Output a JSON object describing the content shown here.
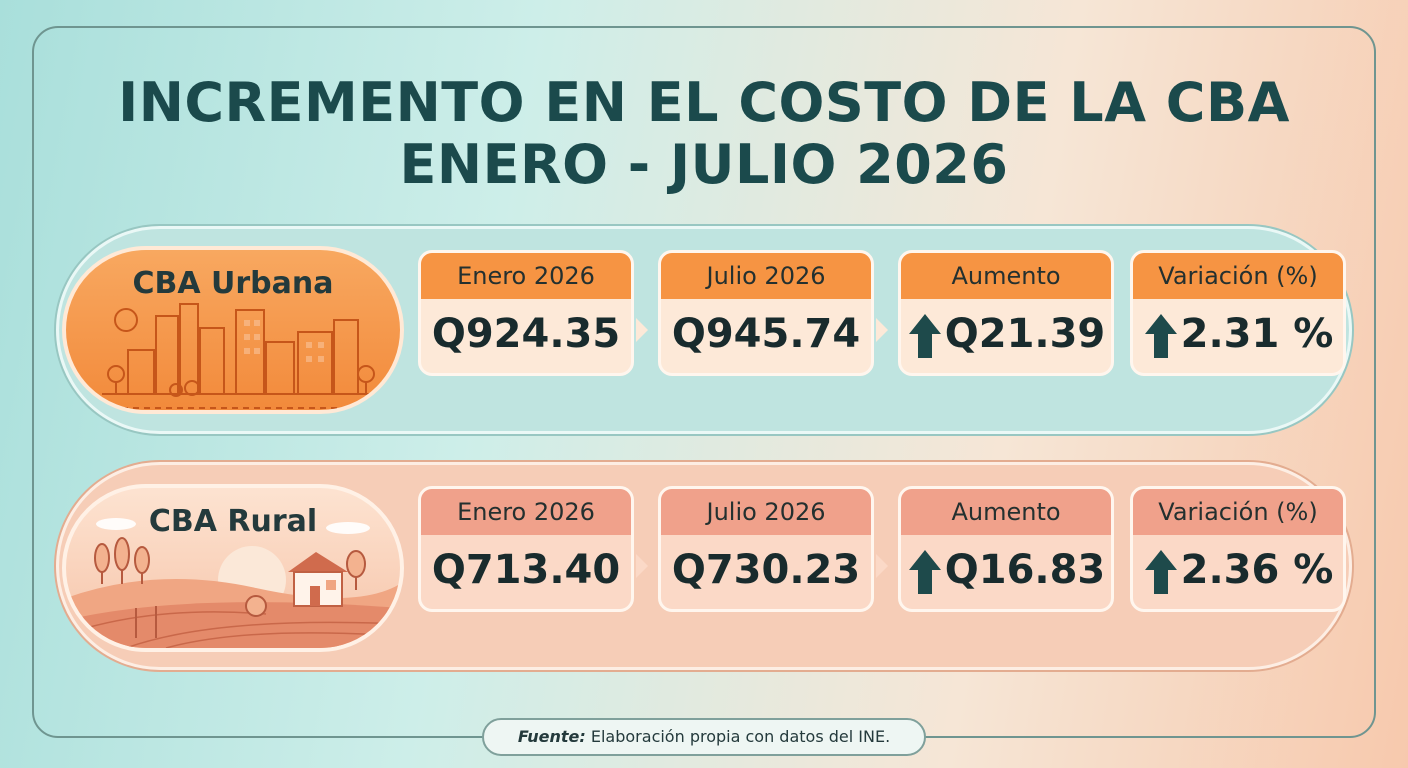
{
  "title": {
    "line1": "INCREMENTO EN EL COSTO DE LA CBA",
    "line2": "ENERO - JULIO 2026"
  },
  "rows": [
    {
      "label": "CBA Urbana",
      "cards": [
        {
          "header": "Enero 2026",
          "value": "Q924.35"
        },
        {
          "header": "Julio 2026",
          "value": "Q945.74"
        },
        {
          "header": "Aumento",
          "value": "Q21.39"
        },
        {
          "header": "Variación (%)",
          "value": "2.31 %"
        }
      ]
    },
    {
      "label": "CBA Rural",
      "cards": [
        {
          "header": "Enero 2026",
          "value": "Q713.40"
        },
        {
          "header": "Julio 2026",
          "value": "Q730.23"
        },
        {
          "header": "Aumento",
          "value": "Q16.83"
        },
        {
          "header": "Variación (%)",
          "value": "2.36 %"
        }
      ]
    }
  ],
  "source": {
    "label": "Fuente:",
    "text": "Elaboración propia con datos del INE."
  },
  "icons": {
    "arrow": "arrow-up-icon",
    "urban": "city-illustration",
    "rural": "farm-illustration"
  },
  "colors": {
    "title": "#1b4a4c",
    "urban_accent": "#f69443",
    "rural_accent": "#f0a18b",
    "arrow": "#1e4a4b"
  }
}
